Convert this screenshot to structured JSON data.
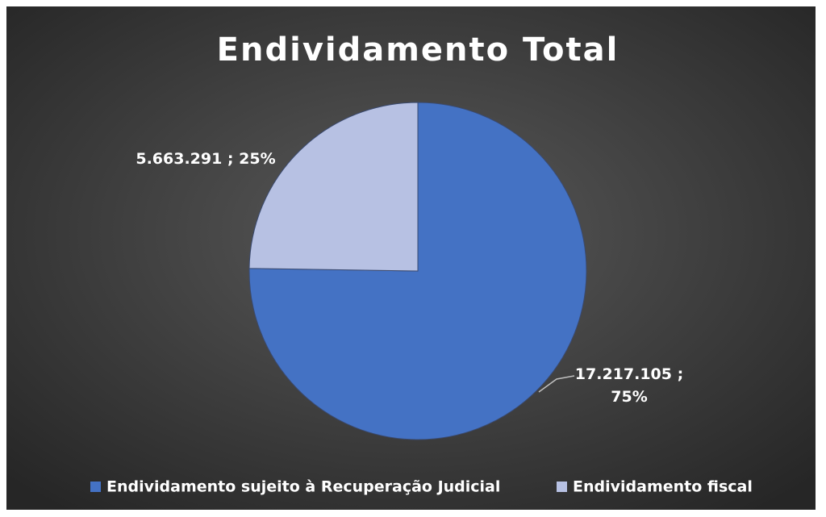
{
  "chart_data": {
    "type": "pie",
    "title": "Endividamento Total",
    "categories": [
      "Endividamento sujeito à Recuperação Judicial",
      "Endividamento fiscal"
    ],
    "values": [
      17217105,
      5663291
    ],
    "value_labels": [
      "17.217.105 ; 75%",
      "5.663.291 ; 25%"
    ],
    "colors": [
      "#4472c4",
      "#b7c1e3"
    ],
    "legend": "bottom"
  }
}
